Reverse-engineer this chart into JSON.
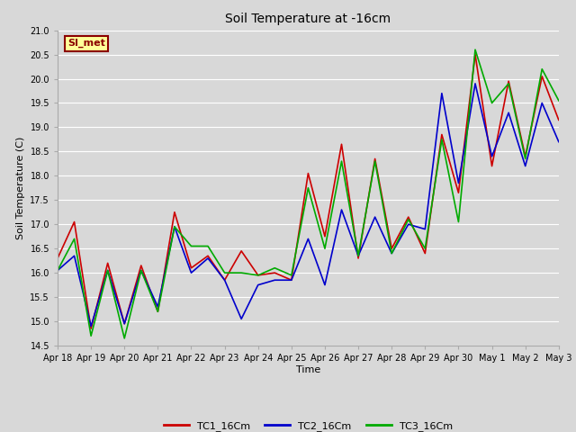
{
  "title": "Soil Temperature at -16cm",
  "xlabel": "Time",
  "ylabel": "Soil Temperature (C)",
  "ylim": [
    14.5,
    21.0
  ],
  "background_color": "#d8d8d8",
  "plot_bg_color": "#d8d8d8",
  "grid_color": "#ffffff",
  "legend_label": "SI_met",
  "legend_bg": "#ffff99",
  "legend_border": "#8B0000",
  "series": {
    "TC1_16Cm": {
      "color": "#cc0000",
      "x": [
        0,
        0.5,
        1,
        1.5,
        2,
        2.5,
        3,
        3.5,
        4,
        4.5,
        5,
        5.5,
        6,
        6.5,
        7,
        7.5,
        8,
        8.5,
        9,
        9.5,
        10,
        10.5,
        11,
        11.5,
        12,
        12.5,
        13,
        13.5,
        14,
        14.5,
        15
      ],
      "y": [
        16.3,
        17.05,
        14.85,
        16.2,
        14.95,
        16.15,
        15.2,
        17.25,
        16.1,
        16.35,
        15.85,
        16.45,
        15.95,
        16.0,
        15.85,
        18.05,
        16.75,
        18.65,
        16.3,
        18.35,
        16.5,
        17.15,
        16.4,
        18.85,
        17.65,
        20.5,
        18.2,
        19.95,
        18.4,
        20.05,
        19.15
      ]
    },
    "TC2_16Cm": {
      "color": "#0000cc",
      "x": [
        0,
        0.5,
        1,
        1.5,
        2,
        2.5,
        3,
        3.5,
        4,
        4.5,
        5,
        5.5,
        6,
        6.5,
        7,
        7.5,
        8,
        8.5,
        9,
        9.5,
        10,
        10.5,
        11,
        11.5,
        12,
        12.5,
        13,
        13.5,
        14,
        14.5,
        15
      ],
      "y": [
        16.05,
        16.35,
        14.9,
        16.05,
        14.95,
        16.05,
        15.3,
        16.95,
        16.0,
        16.3,
        15.85,
        15.05,
        15.75,
        15.85,
        15.85,
        16.7,
        15.75,
        17.3,
        16.35,
        17.15,
        16.4,
        17.0,
        16.9,
        19.7,
        17.85,
        19.9,
        18.4,
        19.3,
        18.2,
        19.5,
        18.7
      ]
    },
    "TC3_16Cm": {
      "color": "#00aa00",
      "x": [
        0,
        0.5,
        1,
        1.5,
        2,
        2.5,
        3,
        3.5,
        4,
        4.5,
        5,
        5.5,
        6,
        6.5,
        7,
        7.5,
        8,
        8.5,
        9,
        9.5,
        10,
        10.5,
        11,
        11.5,
        12,
        12.5,
        13,
        13.5,
        14,
        14.5,
        15
      ],
      "y": [
        16.05,
        16.7,
        14.7,
        16.05,
        14.65,
        16.05,
        15.2,
        16.95,
        16.55,
        16.55,
        16.0,
        16.0,
        15.95,
        16.1,
        15.95,
        17.75,
        16.5,
        18.3,
        16.35,
        18.3,
        16.4,
        17.1,
        16.5,
        18.75,
        17.05,
        20.6,
        19.5,
        19.9,
        18.35,
        20.2,
        19.55
      ]
    }
  },
  "xtick_positions": [
    0,
    1,
    2,
    3,
    4,
    5,
    6,
    7,
    8,
    9,
    10,
    11,
    12,
    13,
    14,
    15
  ],
  "xtick_labels": [
    "Apr 18",
    "Apr 19",
    "Apr 20",
    "Apr 21",
    "Apr 22",
    "Apr 23",
    "Apr 24",
    "Apr 25",
    "Apr 26",
    "Apr 27",
    "Apr 28",
    "Apr 29",
    "Apr 30",
    "May 1",
    "May 2",
    "May 3"
  ],
  "ytick_positions": [
    14.5,
    15.0,
    15.5,
    16.0,
    16.5,
    17.0,
    17.5,
    18.0,
    18.5,
    19.0,
    19.5,
    20.0,
    20.5,
    21.0
  ],
  "line_legend": [
    {
      "label": "TC1_16Cm",
      "color": "#cc0000"
    },
    {
      "label": "TC2_16Cm",
      "color": "#0000cc"
    },
    {
      "label": "TC3_16Cm",
      "color": "#00aa00"
    }
  ],
  "figsize": [
    6.4,
    4.8
  ],
  "dpi": 100
}
